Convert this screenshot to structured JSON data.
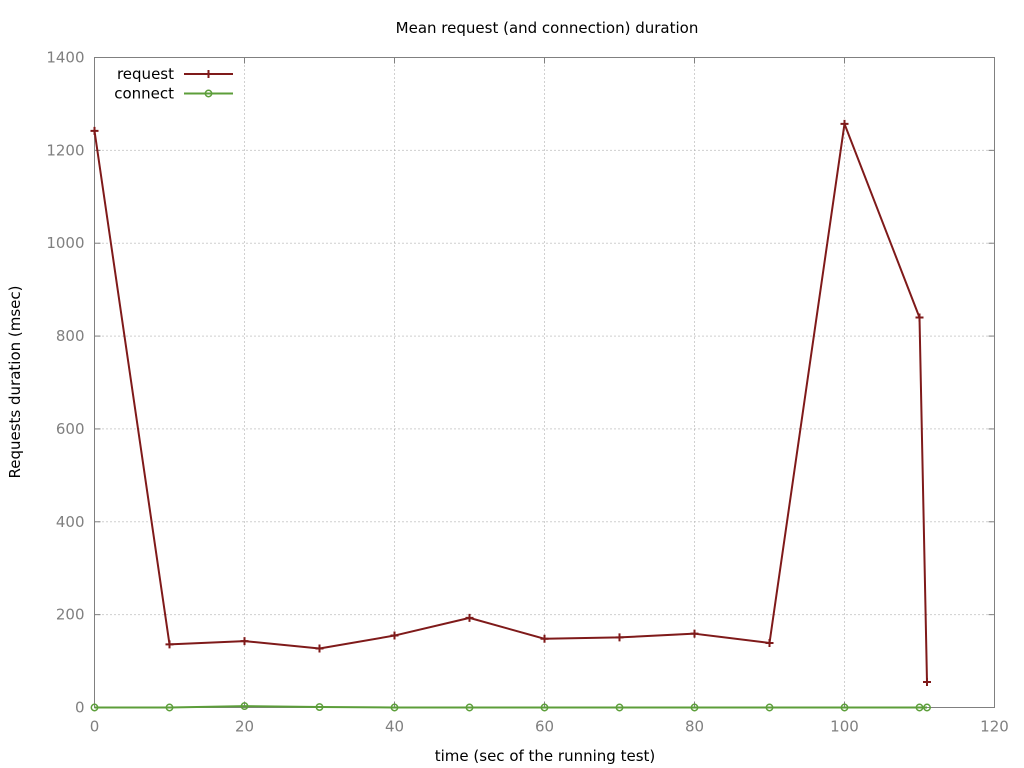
{
  "chart_data": {
    "type": "line",
    "title": "Mean request (and connection) duration",
    "xlabel": "time (sec of the running test)",
    "ylabel": "Requests duration (msec)",
    "xlim": [
      0,
      120
    ],
    "ylim": [
      0,
      1400
    ],
    "x_ticks": [
      0,
      20,
      40,
      60,
      80,
      100,
      120
    ],
    "y_ticks": [
      0,
      200,
      400,
      600,
      800,
      1000,
      1200,
      1400
    ],
    "grid": true,
    "legend_position": "top-left",
    "series": [
      {
        "name": "request",
        "color": "#7f1a1a",
        "marker": "plus",
        "points": [
          [
            0,
            1242
          ],
          [
            10,
            136
          ],
          [
            20,
            143
          ],
          [
            30,
            127
          ],
          [
            40,
            155
          ],
          [
            50,
            193
          ],
          [
            60,
            148
          ],
          [
            70,
            151
          ],
          [
            80,
            159
          ],
          [
            90,
            139
          ],
          [
            100,
            1257
          ],
          [
            110,
            840
          ],
          [
            111,
            55
          ]
        ]
      },
      {
        "name": "connect",
        "color": "#5c9e3a",
        "marker": "circle",
        "points": [
          [
            0,
            0
          ],
          [
            10,
            0
          ],
          [
            20,
            3
          ],
          [
            30,
            1
          ],
          [
            40,
            0
          ],
          [
            50,
            0
          ],
          [
            60,
            0
          ],
          [
            70,
            0
          ],
          [
            80,
            0
          ],
          [
            90,
            0
          ],
          [
            100,
            0
          ],
          [
            110,
            0
          ],
          [
            111,
            0
          ]
        ]
      }
    ]
  }
}
